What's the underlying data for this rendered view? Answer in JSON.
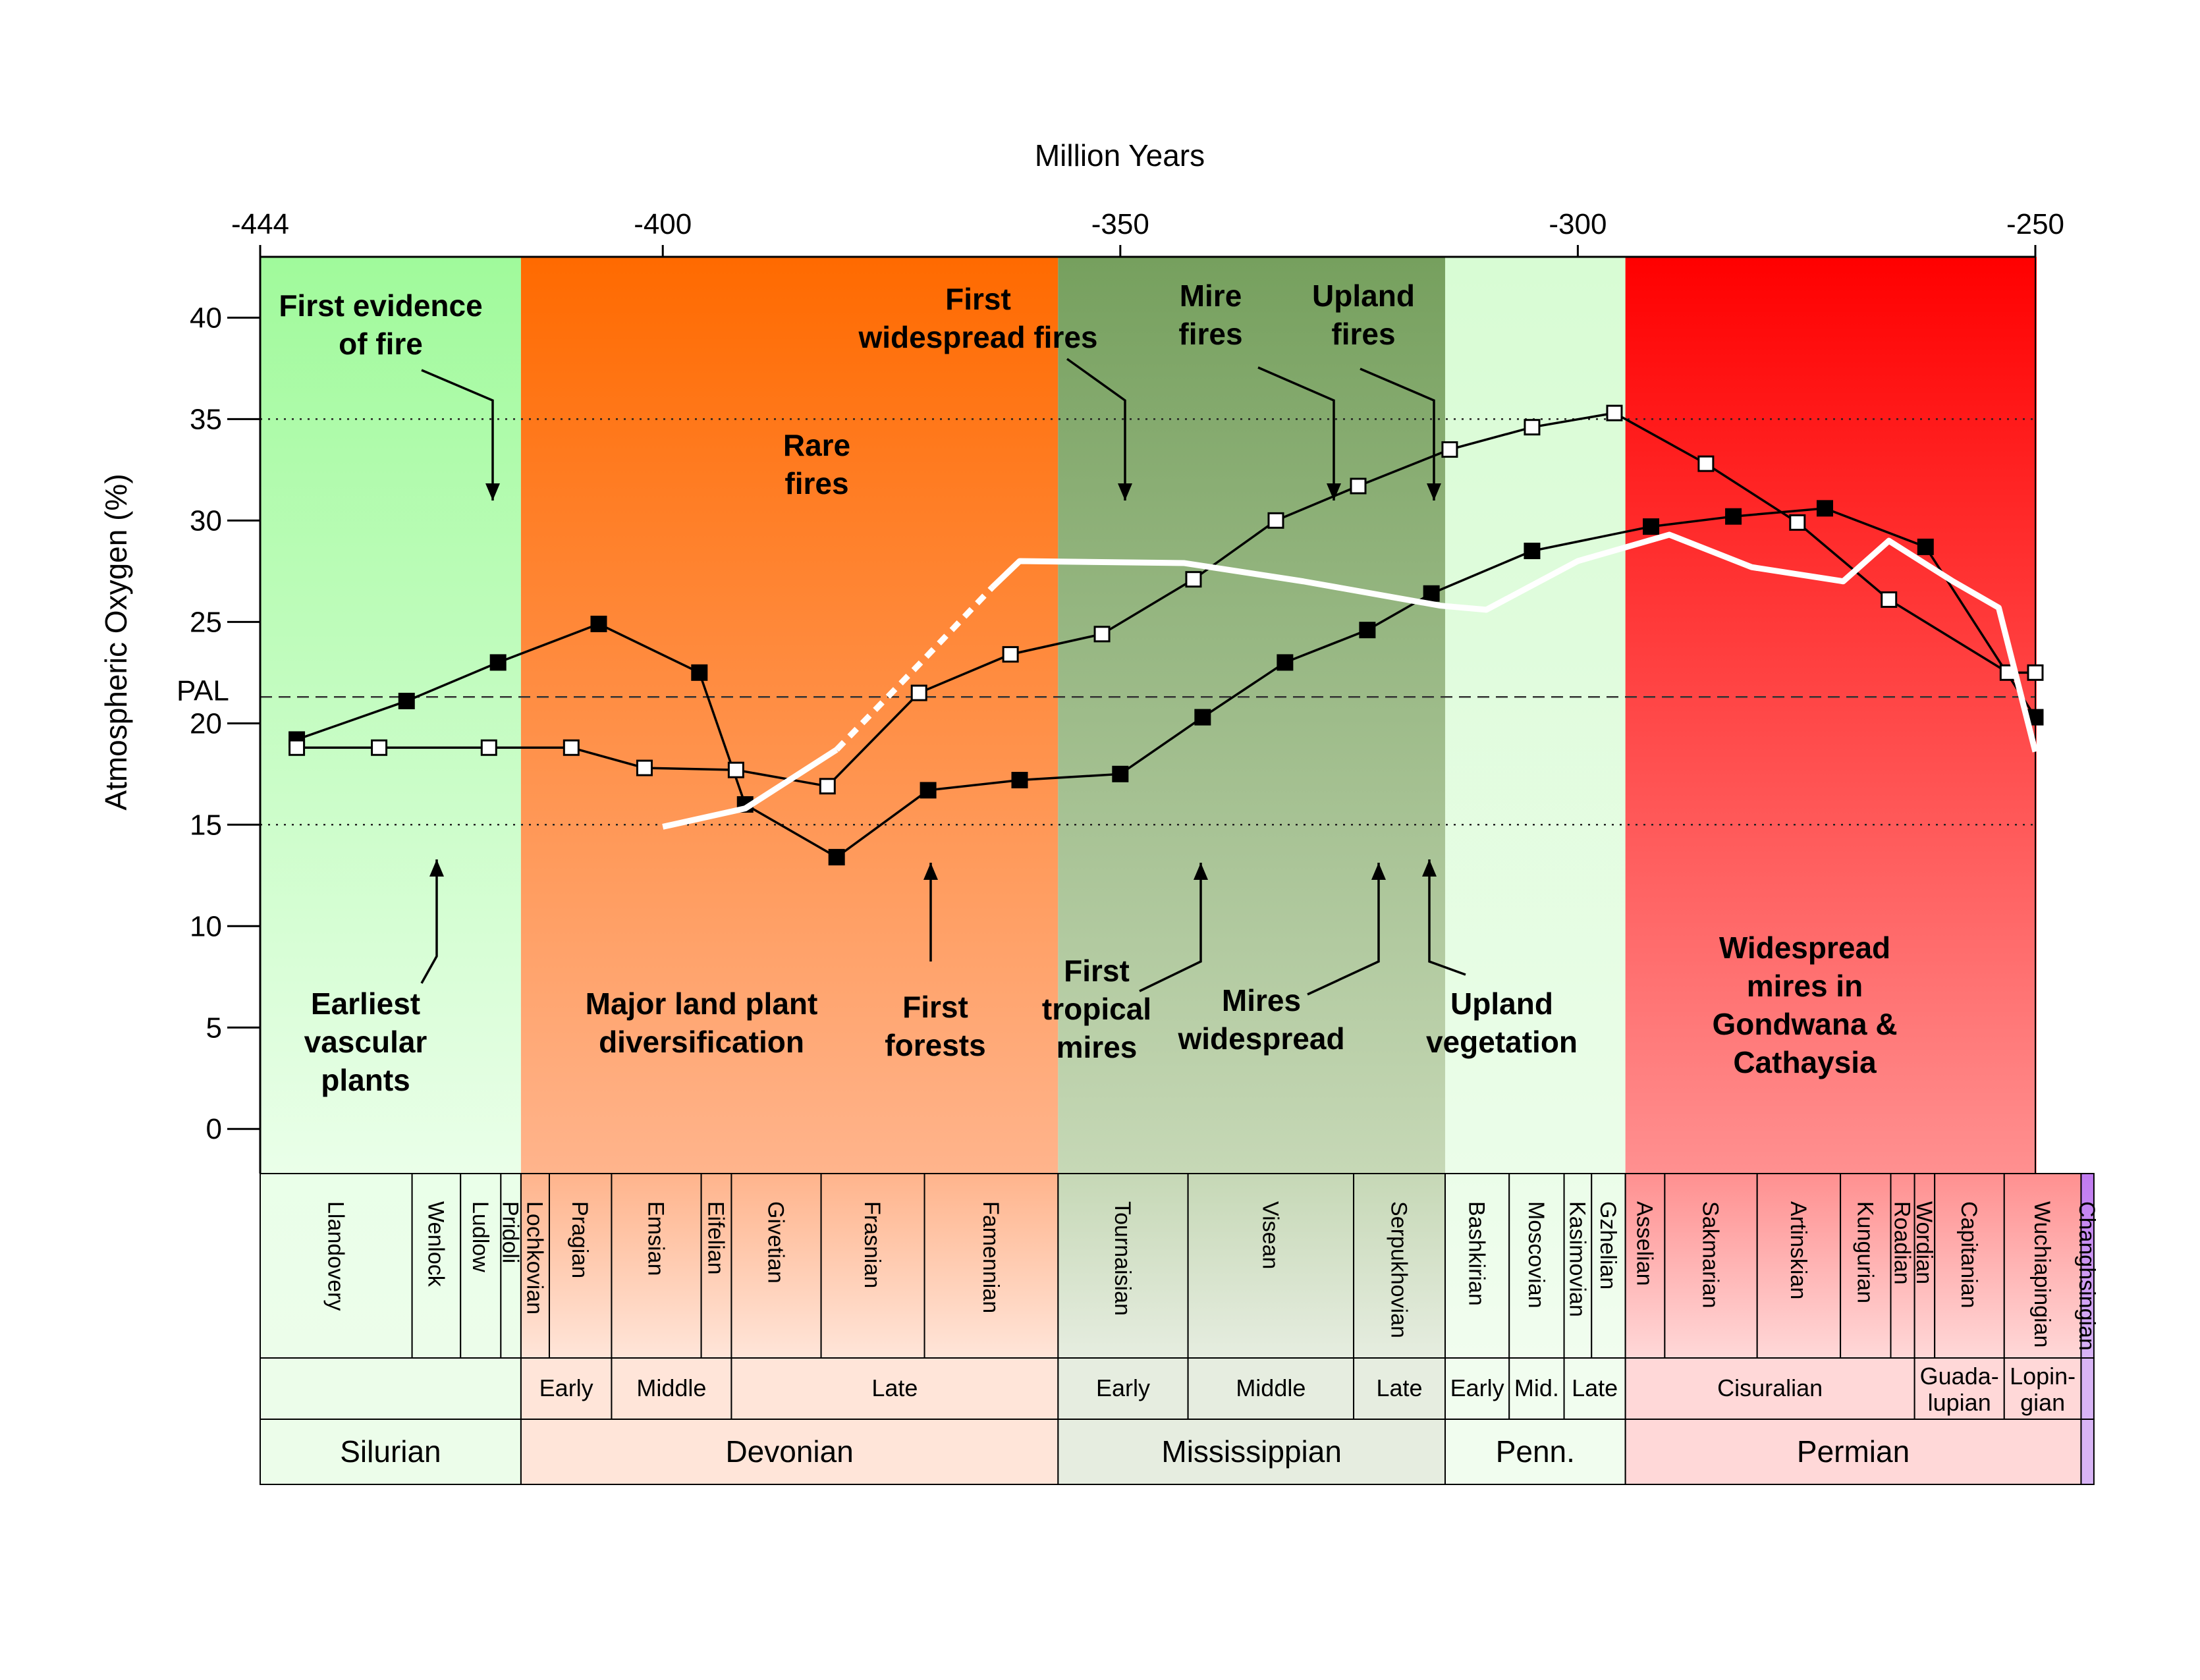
{
  "chart_data": {
    "type": "line",
    "title": "",
    "xlabel": "Million Years",
    "ylabel": "Atmospheric Oxygen (%)",
    "xlim": [
      -444,
      -250
    ],
    "ylim": [
      -2.2,
      43
    ],
    "x_ticks": [
      "-444",
      "-400",
      "-350",
      "-300",
      "-250"
    ],
    "y_ticks": [
      "0",
      "5",
      "10",
      "15",
      "20",
      "25",
      "30",
      "35",
      "40"
    ],
    "reference_lines": [
      {
        "label": "PAL",
        "y": 21.3,
        "style": "dashed"
      },
      {
        "label": "",
        "y": 15,
        "style": "dotted"
      },
      {
        "label": "",
        "y": 35,
        "style": "dotted"
      }
    ],
    "series": [
      {
        "marker": "filled-square",
        "color": "#000000",
        "x": [
          -440,
          -428,
          -418,
          -407,
          -396,
          -391,
          -381,
          -371,
          -361,
          -350,
          -341,
          -332,
          -323,
          -316,
          -305,
          -292,
          -283,
          -273,
          -262,
          -250
        ],
        "values": [
          19.2,
          21.1,
          23.0,
          24.9,
          22.5,
          16.0,
          13.4,
          16.7,
          17.2,
          17.5,
          20.3,
          23.0,
          24.6,
          26.4,
          28.5,
          29.7,
          30.2,
          30.6,
          28.7,
          20.3
        ]
      },
      {
        "marker": "open-square",
        "color": "#000000",
        "x": [
          -440,
          -431,
          -419,
          -410,
          -402,
          -392,
          -382,
          -372,
          -362,
          -352,
          -342,
          -333,
          -324,
          -314,
          -305,
          -296,
          -286,
          -276,
          -266,
          -253,
          -250
        ],
        "values": [
          18.8,
          18.8,
          18.8,
          18.8,
          17.8,
          17.7,
          16.9,
          21.5,
          23.4,
          24.4,
          27.1,
          30.0,
          31.7,
          33.5,
          34.6,
          35.3,
          32.8,
          29.9,
          26.1,
          22.5,
          22.5
        ]
      },
      {
        "color": "#ffffff",
        "segments": [
          {
            "style": "solid",
            "x": [
              -400,
              -391,
              -381
            ],
            "values": [
              14.9,
              15.8,
              18.7
            ]
          },
          {
            "style": "dotted",
            "x": [
              -381,
              -372,
              -364
            ],
            "values": [
              18.7,
              22.9,
              26.7
            ]
          },
          {
            "style": "solid",
            "x": [
              -364,
              -361,
              -343,
              -330,
              -315,
              -310,
              -300,
              -290,
              -281,
              -271,
              -266,
              -259,
              -254,
              -250
            ],
            "values": [
              26.7,
              28.0,
              27.9,
              27.0,
              25.8,
              25.6,
              28.0,
              29.3,
              27.7,
              27.0,
              29.0,
              27.0,
              25.7,
              18.6
            ]
          }
        ]
      }
    ],
    "bands": [
      {
        "x0": -444,
        "x1": -415.5,
        "top": "#a0fa9b",
        "bottom": "#eaffe9"
      },
      {
        "x0": -415.5,
        "x1": -356.8,
        "top": "#ff6a00",
        "bottom": "#ffb48c"
      },
      {
        "x0": -356.8,
        "x1": -314.5,
        "top": "#76a05e",
        "bottom": "#c6d8b6"
      },
      {
        "x0": -314.5,
        "x1": -294.8,
        "top": "#d8fcd4",
        "bottom": "#ebfde9"
      },
      {
        "x0": -294.8,
        "x1": -245,
        "top": "#ff0000",
        "bottom": "#ff9090"
      },
      {
        "x0": -245,
        "x1": -243.6,
        "top": "#9a30e0",
        "bottom": "#c07af0"
      }
    ],
    "annotations": [
      {
        "lines": [
          "First evidence",
          "of fire"
        ],
        "arrow": "down"
      },
      {
        "lines": [
          "Rare",
          "fires"
        ]
      },
      {
        "lines": [
          "First",
          "widespread fires"
        ],
        "arrow": "down"
      },
      {
        "lines": [
          "Mire",
          "fires"
        ],
        "arrow": "down"
      },
      {
        "lines": [
          "Upland",
          "fires"
        ],
        "arrow": "down"
      },
      {
        "lines": [
          "Earliest",
          "vascular",
          "plants"
        ],
        "arrow": "up"
      },
      {
        "lines": [
          "Major land plant",
          "diversification"
        ]
      },
      {
        "lines": [
          "First",
          "forests"
        ],
        "arrow": "up"
      },
      {
        "lines": [
          "First",
          "tropical",
          "mires"
        ],
        "arrow": "up"
      },
      {
        "lines": [
          "Mires",
          "widespread"
        ],
        "arrow": "up"
      },
      {
        "lines": [
          "Upland",
          "vegetation"
        ],
        "arrow": "up"
      },
      {
        "lines": [
          "Widespread",
          "mires in",
          "Gondwana &",
          "Cathaysia"
        ]
      }
    ],
    "periods": [
      {
        "name": "Silurian",
        "x0": -444,
        "x1": -415.5,
        "color": "#ecfdea"
      },
      {
        "name": "Devonian",
        "x0": -415.5,
        "x1": -356.8,
        "color": "#ffe5d9"
      },
      {
        "name": "Mississippian",
        "x0": -356.8,
        "x1": -314.5,
        "color": "#e6ede0"
      },
      {
        "name": "Penn.",
        "x0": -314.5,
        "x1": -294.8,
        "color": "#f1fdef"
      },
      {
        "name": "Permian",
        "x0": -294.8,
        "x1": -245,
        "color": "#ffd8d8"
      },
      {
        "name": "",
        "x0": -245,
        "x1": -243.6,
        "color": "#d8b4f5"
      }
    ],
    "epochs": [
      {
        "name": "",
        "x0": -444,
        "x1": -415.5
      },
      {
        "name": "Early",
        "x0": -415.5,
        "x1": -405.6
      },
      {
        "name": "Middle",
        "x0": -405.6,
        "x1": -392.5
      },
      {
        "name": "Late",
        "x0": -392.5,
        "x1": -356.8
      },
      {
        "name": "Early",
        "x0": -356.8,
        "x1": -342.6
      },
      {
        "name": "Middle",
        "x0": -342.6,
        "x1": -324.5
      },
      {
        "name": "Late",
        "x0": -324.5,
        "x1": -314.5
      },
      {
        "name": "Early",
        "x0": -314.5,
        "x1": -307.5
      },
      {
        "name": "Mid.",
        "x0": -307.5,
        "x1": -301.5
      },
      {
        "name": "Late",
        "x0": -301.5,
        "x1": -294.8
      },
      {
        "name": "Cisuralian",
        "x0": -294.8,
        "x1": -263.2
      },
      {
        "name": "Guada-|lupian",
        "x0": -263.2,
        "x1": -253.4
      },
      {
        "name": "Lopin-|gian",
        "x0": -253.4,
        "x1": -245
      },
      {
        "name": "",
        "x0": -245,
        "x1": -243.6
      }
    ],
    "stages": [
      {
        "name": "Llandovery",
        "x0": -444,
        "x1": -427.4
      },
      {
        "name": "Wenlock",
        "x0": -427.4,
        "x1": -422.1
      },
      {
        "name": "Ludlow",
        "x0": -422.1,
        "x1": -417.7
      },
      {
        "name": "Pridoli",
        "x0": -417.7,
        "x1": -415.5
      },
      {
        "name": "Lochkovian",
        "x0": -415.5,
        "x1": -412.4
      },
      {
        "name": "Pragian",
        "x0": -412.4,
        "x1": -405.6
      },
      {
        "name": "Emsian",
        "x0": -405.6,
        "x1": -395.8
      },
      {
        "name": "Eifelian",
        "x0": -395.8,
        "x1": -392.5
      },
      {
        "name": "Givetian",
        "x0": -392.5,
        "x1": -382.7
      },
      {
        "name": "Frasnian",
        "x0": -382.7,
        "x1": -371.4
      },
      {
        "name": "Famennian",
        "x0": -371.4,
        "x1": -356.8
      },
      {
        "name": "Tournaisian",
        "x0": -356.8,
        "x1": -342.6
      },
      {
        "name": "Visean",
        "x0": -342.6,
        "x1": -324.5
      },
      {
        "name": "Serpukhovian",
        "x0": -324.5,
        "x1": -314.5
      },
      {
        "name": "Bashkirian",
        "x0": -314.5,
        "x1": -307.5
      },
      {
        "name": "Moscovian",
        "x0": -307.5,
        "x1": -301.5
      },
      {
        "name": "Kasimovian",
        "x0": -301.5,
        "x1": -298.5
      },
      {
        "name": "Gzhelian",
        "x0": -298.5,
        "x1": -294.8
      },
      {
        "name": "Asselian",
        "x0": -294.8,
        "x1": -290.5
      },
      {
        "name": "Sakmarian",
        "x0": -290.5,
        "x1": -280.4
      },
      {
        "name": "Artinskian",
        "x0": -280.4,
        "x1": -271.3
      },
      {
        "name": "Kungurian",
        "x0": -271.3,
        "x1": -265.8
      },
      {
        "name": "Roadian",
        "x0": -265.8,
        "x1": -263.2
      },
      {
        "name": "Wordian",
        "x0": -263.2,
        "x1": -261.0
      },
      {
        "name": "Capitanian",
        "x0": -261.0,
        "x1": -253.4
      },
      {
        "name": "Wuchiapingian",
        "x0": -253.4,
        "x1": -245
      },
      {
        "name": "Changhsingian",
        "x0": -245,
        "x1": -243.6
      }
    ]
  }
}
